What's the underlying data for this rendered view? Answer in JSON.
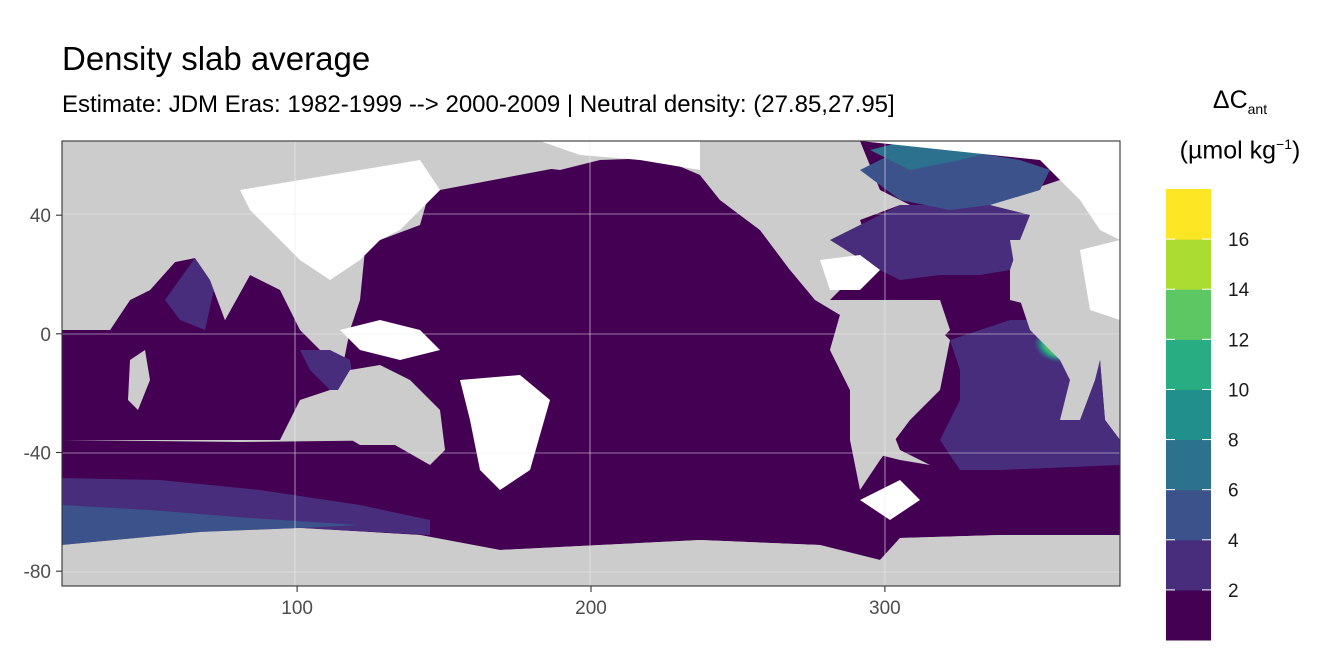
{
  "title": "Density slab average",
  "subtitle": "Estimate: JDM Eras: 1982-1999 --> 2000-2009 | Neutral density: (27.85,27.95]",
  "legend": {
    "title_symbol": "ΔC",
    "title_sub": "ant",
    "unit_open": "(µmol kg",
    "unit_sup": "−1",
    "unit_close": ")",
    "breaks": [
      2,
      4,
      6,
      8,
      10,
      12,
      14,
      16
    ],
    "colors": [
      "#440154",
      "#472D7B",
      "#3B528B",
      "#2C728E",
      "#21908C",
      "#27AD81",
      "#5DC863",
      "#AADC32",
      "#FDE725"
    ]
  },
  "axes": {
    "x_ticks": [
      100,
      200,
      300
    ],
    "y_ticks": [
      40,
      0,
      -40,
      -80
    ],
    "x_range": [
      20,
      380
    ],
    "y_range": [
      -85,
      65
    ]
  },
  "colors": {
    "land": "#cccccc",
    "no_data": "#ffffff",
    "ocean_base": "#440154"
  }
}
